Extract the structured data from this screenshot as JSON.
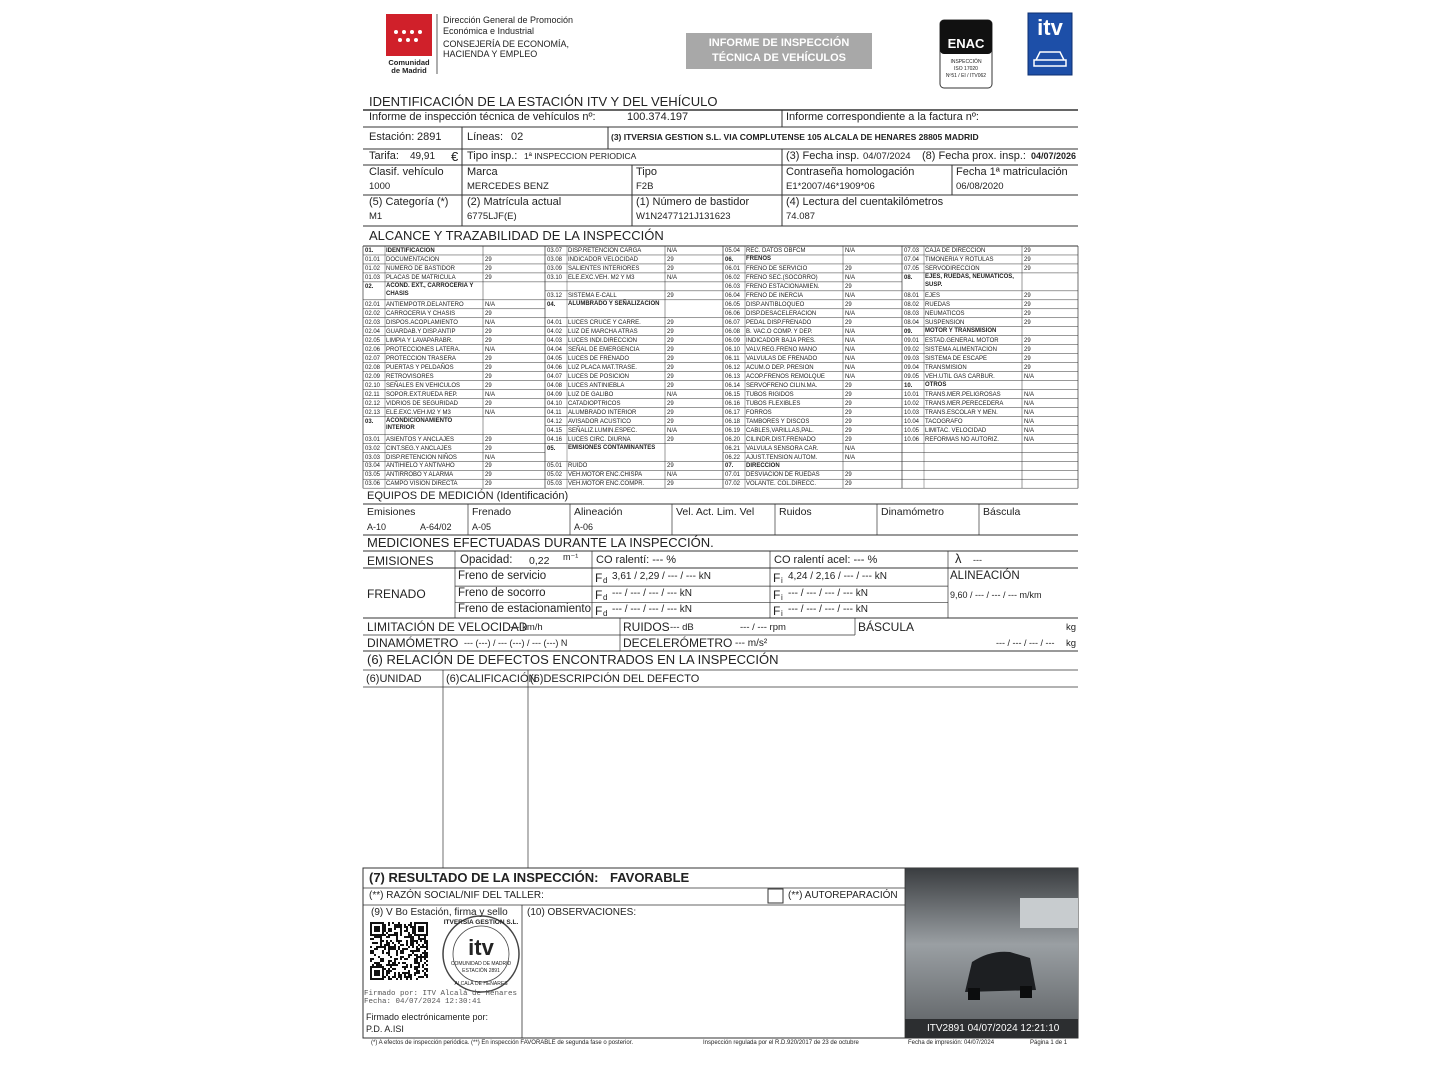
{
  "header": {
    "org": [
      "Dirección General de Promoción",
      "Económica e Industrial",
      "CONSEJERÍA DE ECONOMÍA,",
      "HACIENDA Y EMPLEO"
    ],
    "logo_text": [
      "Comunidad",
      "de Madrid"
    ],
    "banner": [
      "INFORME DE INSPECCIÓN",
      "TÉCNICA DE VEHÍCULOS"
    ],
    "enac": "ENAC",
    "enac_small": [
      "INSPECCIÓN",
      "ISO 17020",
      "Nº51 / EI / ITV062"
    ],
    "itv": "itv"
  },
  "identification": {
    "title": "IDENTIFICACIÓN DE LA ESTACIÓN ITV Y DEL VEHÍCULO",
    "report_label": "Informe de inspección técnica de vehículos nº:",
    "report_no": "100.374.197",
    "invoice_label": "Informe correspondiente a la factura nº:",
    "station_label": "Estación:",
    "station": "2891",
    "lines_label": "Líneas:",
    "lines": "02",
    "company": "(3) ITVERSIA GESTION S.L. VIA COMPLUTENSE 105 ALCALA DE HENARES 28805 MADRID",
    "tariff_label": "Tarifa:",
    "tariff": "49,91",
    "currency": "€",
    "insp_type_label": "Tipo insp.:",
    "insp_type": "1ª INSPECCION PERIODICA",
    "date_label": "(3) Fecha insp.",
    "date": "04/07/2024",
    "next_label": "(8) Fecha prox. insp.:",
    "next": "04/07/2026",
    "fields": [
      [
        {
          "label": "Clasif. vehículo",
          "value": "1000"
        },
        {
          "label": "Marca",
          "value": "MERCEDES BENZ"
        },
        {
          "label": "Tipo",
          "value": "F2B"
        },
        {
          "label": "Contraseña homologación",
          "value": "E1*2007/46*1909*06"
        },
        {
          "label": "Fecha 1ª matriculación",
          "value": "06/08/2020"
        }
      ],
      [
        {
          "label": "(5) Categoría (*)",
          "value": "M1"
        },
        {
          "label": "(2) Matrícula actual",
          "value": "6775LJF(E)"
        },
        {
          "label": "(1) Número de bastidor",
          "value": "W1N2477121J131623"
        },
        {
          "label": "(4) Lectura del cuentakilómetros",
          "value": "74.087"
        }
      ]
    ]
  },
  "scope": {
    "title": "ALCANCE Y TRAZABILIDAD DE LA INSPECCIÓN",
    "columns": [
      [
        {
          "code": "01.",
          "label": "IDENTIFICACION"
        },
        {
          "code": "01.01",
          "label": "DOCUMENTACION",
          "value": "29"
        },
        {
          "code": "01.02",
          "label": "NUMERO DE BASTIDOR",
          "value": "29"
        },
        {
          "code": "01.03",
          "label": "PLACAS DE MATRICULA",
          "value": "29"
        },
        {
          "code": "02.",
          "label": "ACOND. EXT., CARROCERIA Y CHASIS"
        },
        {
          "code": "02.01",
          "label": "ANTIEMPOTR.DELANTERO",
          "value": "N/A"
        },
        {
          "code": "02.02",
          "label": "CARROCERIA Y CHASIS",
          "value": "29"
        },
        {
          "code": "02.03",
          "label": "DISPOS.ACOPLAMIENTO",
          "value": "N/A"
        },
        {
          "code": "02.04",
          "label": "GUARDAB.Y DISP.ANTIP",
          "value": "29"
        },
        {
          "code": "02.05",
          "label": "LIMPIA Y LAVAPARABR.",
          "value": "29"
        },
        {
          "code": "02.06",
          "label": "PROTECCIONES LATERA.",
          "value": "N/A"
        },
        {
          "code": "02.07",
          "label": "PROTECCION TRASERA",
          "value": "29"
        },
        {
          "code": "02.08",
          "label": "PUERTAS Y PELDAÑOS",
          "value": "29"
        },
        {
          "code": "02.09",
          "label": "RETROVISORES",
          "value": "29"
        },
        {
          "code": "02.10",
          "label": "SEÑALES EN VEHICULOS",
          "value": "29"
        },
        {
          "code": "02.11",
          "label": "SOPOR.EXT.RUEDA REP.",
          "value": "N/A"
        },
        {
          "code": "02.12",
          "label": "VIDRIOS DE SEGURIDAD",
          "value": "29"
        },
        {
          "code": "02.13",
          "label": "ELE.EXC.VEH.M2 Y M3",
          "value": "N/A"
        },
        {
          "code": "03.",
          "label": "ACONDICIONAMIENTO INTERIOR"
        },
        {
          "code": "03.01",
          "label": "ASIENTOS Y ANCLAJES",
          "value": "29"
        },
        {
          "code": "03.02",
          "label": "CINT.SEG.Y ANCLAJES",
          "value": "29"
        },
        {
          "code": "03.03",
          "label": "DISP.RETENCION NIÑOS",
          "value": "N/A"
        },
        {
          "code": "03.04",
          "label": "ANTIHIELO Y ANTIVAHO",
          "value": "29"
        },
        {
          "code": "03.05",
          "label": "ANTIRROBO Y ALARMA",
          "value": "29"
        },
        {
          "code": "03.06",
          "label": "CAMPO VISION DIRECTA",
          "value": "29"
        }
      ],
      [
        {
          "code": "03.07",
          "label": "DISP.RETENCION CARGA",
          "value": "N/A"
        },
        {
          "code": "03.08",
          "label": "INDICADOR VELOCIDAD",
          "value": "29"
        },
        {
          "code": "03.09",
          "label": "SALIENTES INTERIORES",
          "value": "29"
        },
        {
          "code": "03.10",
          "label": "ELE.EXC.VEH. M2 Y M3",
          "value": "N/A"
        },
        null,
        {
          "code": "03.12",
          "label": "SISTEMA E-CALL",
          "value": "29"
        },
        {
          "code": "04.",
          "label": "ALUMBRADO Y SEÑALIZACION"
        },
        {
          "code": "04.01",
          "label": "LUCES CRUCE Y CARRE.",
          "value": "29"
        },
        {
          "code": "04.02",
          "label": "LUZ DE MARCHA ATRAS",
          "value": "29"
        },
        {
          "code": "04.03",
          "label": "LUCES INDI.DIRECCION",
          "value": "29"
        },
        {
          "code": "04.04",
          "label": "SEÑAL DE EMERGENCIA",
          "value": "29"
        },
        {
          "code": "04.05",
          "label": "LUCES DE FRENADO",
          "value": "29"
        },
        {
          "code": "04.06",
          "label": "LUZ PLACA MAT.TRASE.",
          "value": "29"
        },
        {
          "code": "04.07",
          "label": "LUCES DE POSICION",
          "value": "29"
        },
        {
          "code": "04.08",
          "label": "LUCES ANTINIEBLA",
          "value": "29"
        },
        {
          "code": "04.09",
          "label": "LUZ DE GALIBO",
          "value": "N/A"
        },
        {
          "code": "04.10",
          "label": "CATADIOPTRICOS",
          "value": "29"
        },
        {
          "code": "04.11",
          "label": "ALUMBRADO INTERIOR",
          "value": "29"
        },
        {
          "code": "04.12",
          "label": "AVISADOR ACUSTICO",
          "value": "29"
        },
        {
          "code": "04.15",
          "label": "SEÑALIZ.LUMIN.ESPEC.",
          "value": "N/A"
        },
        {
          "code": "04.16",
          "label": "LUCES CIRC. DIURNA",
          "value": "29"
        },
        {
          "code": "05.",
          "label": "EMISIONES CONTAMINANTES"
        },
        {
          "code": "05.01",
          "label": "RUIDO",
          "value": "29"
        },
        {
          "code": "05.02",
          "label": "VEH.MOTOR ENC.CHISPA",
          "value": "N/A"
        },
        {
          "code": "05.03",
          "label": "VEH.MOTOR ENC.COMPR.",
          "value": "29"
        }
      ],
      [
        {
          "code": "05.04",
          "label": "REC. DATOS OBFCM",
          "value": "N/A"
        },
        {
          "code": "06.",
          "label": "FRENOS"
        },
        {
          "code": "06.01",
          "label": "FRENO DE SERVICIO",
          "value": "29"
        },
        {
          "code": "06.02",
          "label": "FRENO SEC.(SOCORRO)",
          "value": "N/A"
        },
        {
          "code": "06.03",
          "label": "FRENO ESTACIONAMIEN.",
          "value": "29"
        },
        {
          "code": "06.04",
          "label": "FRENO DE INERCIA",
          "value": "N/A"
        },
        {
          "code": "06.05",
          "label": "DISP.ANTIBLOQUEO",
          "value": "29"
        },
        {
          "code": "06.06",
          "label": "DISP.DESACELERACION",
          "value": "N/A"
        },
        {
          "code": "06.07",
          "label": "PEDAL DISP.FRENADO",
          "value": "29"
        },
        {
          "code": "06.08",
          "label": "B. VAC.O COMP. Y DEP.",
          "value": "N/A"
        },
        {
          "code": "06.09",
          "label": "INDICADOR BAJA PRES.",
          "value": "N/A"
        },
        {
          "code": "06.10",
          "label": "VALV.REG.FRENO MANO",
          "value": "N/A"
        },
        {
          "code": "06.11",
          "label": "VALVULAS DE FRENADO",
          "value": "N/A"
        },
        {
          "code": "06.12",
          "label": "ACUM.O DEP. PRESION",
          "value": "N/A"
        },
        {
          "code": "06.13",
          "label": "ACOP.FRENOS REMOLQUE",
          "value": "N/A"
        },
        {
          "code": "06.14",
          "label": "SERVOFRENO CILIN.MA.",
          "value": "29"
        },
        {
          "code": "06.15",
          "label": "TUBOS RIGIDOS",
          "value": "29"
        },
        {
          "code": "06.16",
          "label": "TUBOS FLEXIBLES",
          "value": "29"
        },
        {
          "code": "06.17",
          "label": "FORROS",
          "value": "29"
        },
        {
          "code": "06.18",
          "label": "TAMBORES Y DISCOS",
          "value": "29"
        },
        {
          "code": "06.19",
          "label": "CABLES,VARILLAS,PAL.",
          "value": "29"
        },
        {
          "code": "06.20",
          "label": "CILINDR.DIST.FRENADO",
          "value": "29"
        },
        {
          "code": "06.21",
          "label": "VALVULA SENSORA CAR.",
          "value": "N/A"
        },
        {
          "code": "06.22",
          "label": "AJUST.TENSION AUTOM.",
          "value": "N/A"
        },
        {
          "code": "07.",
          "label": "DIRECCION"
        },
        {
          "code": "07.01",
          "label": "DESVIACION DE RUEDAS",
          "value": "29"
        },
        {
          "code": "07.02",
          "label": "VOLANTE. COL.DIRECC.",
          "value": "29"
        }
      ],
      [
        {
          "code": "07.03",
          "label": "CAJA DE DIRECCION",
          "value": "29"
        },
        {
          "code": "07.04",
          "label": "TIMONERIA Y ROTULAS",
          "value": "29"
        },
        {
          "code": "07.05",
          "label": "SERVODIRECCION",
          "value": "29"
        },
        {
          "code": "08.",
          "label": "EJES, RUEDAS, NEUMATICOS, SUSP."
        },
        {
          "code": "08.01",
          "label": "EJES",
          "value": "29"
        },
        {
          "code": "08.02",
          "label": "RUEDAS",
          "value": "29"
        },
        {
          "code": "08.03",
          "label": "NEUMATICOS",
          "value": "29"
        },
        {
          "code": "08.04",
          "label": "SUSPENSION",
          "value": "29"
        },
        {
          "code": "09.",
          "label": "MOTOR Y TRANSMISION"
        },
        {
          "code": "09.01",
          "label": "ESTAD.GENERAL MOTOR",
          "value": "29"
        },
        {
          "code": "09.02",
          "label": "SISTEMA ALIMENTACION",
          "value": "29"
        },
        {
          "code": "09.03",
          "label": "SISTEMA DE ESCAPE",
          "value": "29"
        },
        {
          "code": "09.04",
          "label": "TRANSMISION",
          "value": "29"
        },
        {
          "code": "09.05",
          "label": "VEH.UTIL GAS CARBUR.",
          "value": "N/A"
        },
        {
          "code": "10.",
          "label": "OTROS"
        },
        {
          "code": "10.01",
          "label": "TRANS.MER.PELIGROSAS",
          "value": "N/A"
        },
        {
          "code": "10.02",
          "label": "TRANS.MER.PERECEDERA",
          "value": "N/A"
        },
        {
          "code": "10.03",
          "label": "TRANS.ESCOLAR Y MEN.",
          "value": "N/A"
        },
        {
          "code": "10.04",
          "label": "TACOGRAFO",
          "value": "N/A"
        },
        {
          "code": "10.05",
          "label": "LIMITAC. VELOCIDAD",
          "value": "N/A"
        },
        {
          "code": "10.06",
          "label": "REFORMAS NO AUTORIZ.",
          "value": "N/A"
        }
      ]
    ]
  },
  "equipment": {
    "title": "EQUIPOS DE MEDICIÓN (Identificación)",
    "cells": [
      {
        "label": "Emisiones",
        "values": [
          "A-10",
          "A-64/02"
        ]
      },
      {
        "label": "Frenado",
        "values": [
          "A-05"
        ]
      },
      {
        "label": "Alineación",
        "values": [
          "A-06"
        ]
      },
      {
        "label": "Vel. Act. Lim. Vel"
      },
      {
        "label": "Ruidos"
      },
      {
        "label": "Dinamómetro"
      },
      {
        "label": "Báscula"
      }
    ]
  },
  "measurements": {
    "title": "MEDICIONES EFECTUADAS DURANTE LA INSPECCIÓN.",
    "emissions": {
      "label": "EMISIONES",
      "opacity_label": "Opacidad:",
      "opacity": "0,22",
      "opacity_unit": "m⁻¹",
      "co_idle": "CO ralentí: --- %",
      "co_accel": "CO ralentí acel: --- %",
      "lambda": "λ",
      "lambda_value": "---"
    },
    "braking": {
      "label": "FRENADO",
      "force": "F",
      "front": "d",
      "rear": "i",
      "rows": [
        {
          "label": "Freno de servicio",
          "fd": "3,61 / 2,29 / --- / --- kN",
          "fi": "4,24 / 2,16 / --- / --- kN"
        },
        {
          "label": "Freno de socorro",
          "fd": "--- / --- / --- / --- kN",
          "fi": "--- / --- / --- / --- kN"
        },
        {
          "label": "Freno de estacionamiento",
          "fd": "--- / --- / --- / --- kN",
          "fi": "--- / --- / --- / --- kN"
        }
      ]
    },
    "alignment": {
      "label": "ALINEACIÓN",
      "value": "9,60 / --- / --- / --- m/km"
    },
    "speed_limit": {
      "label": "LIMITACIÓN DE VELOCIDAD",
      "value": "--- km/h"
    },
    "noise": {
      "label": "RUIDOS",
      "value": "--- dB",
      "rpm": "--- / --- rpm"
    },
    "scale": {
      "label": "BÁSCULA",
      "unit_top": "kg",
      "value": "--- / --- / --- / ---",
      "unit": "kg"
    },
    "dynamometer": {
      "label": "DINAMÓMETRO",
      "value": "--- (---) / --- (---) / --- (---) N"
    },
    "decelerometer": {
      "label": "DECELERÓMETRO",
      "value": "--- m/s²"
    }
  },
  "defects": {
    "title": "(6) RELACIÓN DE DEFECTOS ENCONTRADOS EN LA INSPECCIÓN",
    "headers": [
      "(6)UNIDAD",
      "(6)CALIFICACIÓN",
      "(6)DESCRIPCIÓN DEL DEFECTO"
    ]
  },
  "result": {
    "title": "(7) RESULTADO DE LA INSPECCIÓN:",
    "value": "FAVORABLE",
    "workshop": "(**) RAZÓN SOCIAL/NIF DEL TALLER:",
    "self_repair": "(**) AUTOREPARACIÓN",
    "signature_label": "(9) V Bo Estación, firma y sello",
    "observations": "(10) OBSERVACIONES:",
    "signed_by": [
      "Firmado por: ITV Alcalá de Henares",
      "Fecha: 04/07/2024 12:30:41"
    ],
    "electronic": [
      "Firmado electrónicamente por:",
      "P.D. A.ISI"
    ],
    "stamp": [
      "ITVERSIA GESTION S.L.",
      "itv",
      "COMUNIDAD DE MADRID",
      "ESTACIÓN 2891",
      "ALCALÁ DE HENARES"
    ],
    "photo_caption": "ITV2891 04/07/2024 12:21:10"
  },
  "footer": [
    "(*) A efectos de inspección periódica. (**) En inspección FAVORABLE de segunda fase o posterior.",
    "Inspección regulada por el R.D.920/2017 de 23 de octubre",
    "Fecha de impresión: 04/07/2024",
    "Página 1 de 1"
  ]
}
